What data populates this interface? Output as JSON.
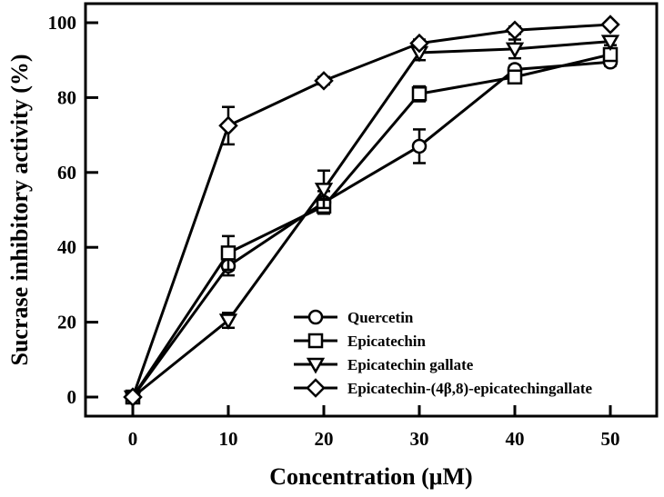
{
  "chart_data": {
    "type": "line",
    "title": "",
    "xlabel": "Concentration (μM)",
    "ylabel": "Sucrase inhibitory activity (%)",
    "x": [
      0,
      10,
      20,
      30,
      40,
      50
    ],
    "xticks": [
      "0",
      "10",
      "20",
      "30",
      "40",
      "50"
    ],
    "yticks": [
      "0",
      "20",
      "40",
      "60",
      "80",
      "100"
    ],
    "xlim": [
      -5,
      55
    ],
    "ylim": [
      -5,
      105
    ],
    "grid": false,
    "legend_position": "bottom-right",
    "series": [
      {
        "name": "Quercetin",
        "marker": "circle",
        "values": [
          0,
          35,
          52,
          67,
          87.5,
          89.5
        ],
        "errors": [
          0,
          2.5,
          3,
          4.5,
          1,
          1
        ]
      },
      {
        "name": "Epicatechin",
        "marker": "square",
        "values": [
          0,
          38.5,
          51,
          81,
          85.5,
          91.5
        ],
        "errors": [
          0,
          4.5,
          2,
          2,
          1,
          1
        ]
      },
      {
        "name": "Epicatechin gallate",
        "marker": "triangle-down",
        "values": [
          0,
          20.5,
          55.5,
          92,
          93,
          95
        ],
        "errors": [
          0,
          2,
          5,
          2,
          2.5,
          1
        ]
      },
      {
        "name": "Epicatechin-(4β,8)-epicatechingallate",
        "marker": "diamond",
        "values": [
          0,
          72.5,
          84.5,
          94.5,
          98,
          99.5
        ],
        "errors": [
          0,
          5,
          1,
          1,
          1,
          0.5
        ]
      }
    ],
    "colors": {
      "line": "#000000",
      "marker_fill": "#ffffff"
    }
  }
}
